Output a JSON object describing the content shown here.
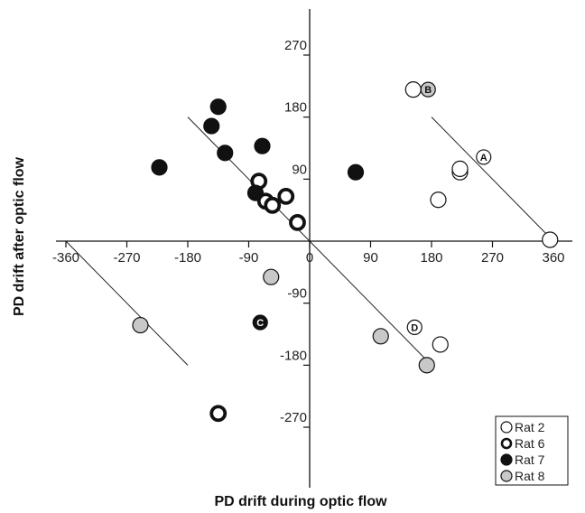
{
  "chart_data": {
    "type": "scatter",
    "xlabel": "PD drift during optic flow",
    "ylabel": "PD drift after optic flow",
    "xlim": [
      -360,
      360
    ],
    "ylim": [
      -360,
      360
    ],
    "x_ticks": [
      -360,
      -270,
      -180,
      -90,
      0,
      90,
      180,
      270,
      360
    ],
    "y_ticks": [
      -270,
      -180,
      -90,
      90,
      180,
      270
    ],
    "x_tick_labels": [
      "-360",
      "-270",
      "-180",
      "-90",
      "0",
      "90",
      "180",
      "270",
      "360"
    ],
    "y_tick_labels": [
      "-270",
      "-180",
      "-90",
      "90",
      "180",
      "270"
    ],
    "grid": false,
    "legend_position": "bottom-right",
    "reference_lines": [
      {
        "x1": -360,
        "y1": 0,
        "x2": -180,
        "y2": -180
      },
      {
        "x1": -180,
        "y1": 180,
        "x2": 0,
        "y2": 0
      },
      {
        "x1": 0,
        "y1": 0,
        "x2": 180,
        "y2": -180
      },
      {
        "x1": 180,
        "y1": 180,
        "x2": 360,
        "y2": 0
      }
    ],
    "series": [
      {
        "name": "Rat 2",
        "marker": "open-thin",
        "color": "#ffffff",
        "points": [
          {
            "x": 153,
            "y": 220
          },
          {
            "x": 190,
            "y": 60
          },
          {
            "x": 222,
            "y": 100
          },
          {
            "x": 222,
            "y": 105
          },
          {
            "x": 193,
            "y": -150
          },
          {
            "x": 355,
            "y": 2
          }
        ]
      },
      {
        "name": "Rat 6",
        "marker": "open-thick",
        "color": "#ffffff",
        "points": [
          {
            "x": -75,
            "y": 87
          },
          {
            "x": -65,
            "y": 58
          },
          {
            "x": -55,
            "y": 52
          },
          {
            "x": -35,
            "y": 65
          },
          {
            "x": -18,
            "y": 27
          },
          {
            "x": -135,
            "y": -250
          }
        ]
      },
      {
        "name": "Rat 7",
        "marker": "filled-black",
        "color": "#111111",
        "points": [
          {
            "x": -135,
            "y": 195
          },
          {
            "x": -145,
            "y": 167
          },
          {
            "x": -125,
            "y": 128
          },
          {
            "x": -70,
            "y": 138
          },
          {
            "x": -222,
            "y": 107
          },
          {
            "x": 68,
            "y": 100
          },
          {
            "x": -80,
            "y": 70
          }
        ]
      },
      {
        "name": "Rat 8",
        "marker": "filled-gray",
        "color": "#c8c8c8",
        "points": [
          {
            "x": -57,
            "y": -52
          },
          {
            "x": -250,
            "y": -122
          },
          {
            "x": 105,
            "y": -138
          },
          {
            "x": 173,
            "y": -180
          }
        ]
      }
    ],
    "annotations": [
      {
        "text": "A",
        "x": 257,
        "y": 122,
        "style": "open"
      },
      {
        "text": "B",
        "x": 175,
        "y": 220,
        "style": "gray"
      },
      {
        "text": "C",
        "x": -73,
        "y": -118,
        "style": "black"
      },
      {
        "text": "D",
        "x": 155,
        "y": -125,
        "style": "open"
      }
    ]
  },
  "legend": {
    "items": [
      {
        "label": "Rat 2",
        "marker": "open-thin"
      },
      {
        "label": "Rat 6",
        "marker": "open-thick"
      },
      {
        "label": "Rat 7",
        "marker": "filled-black"
      },
      {
        "label": "Rat 8",
        "marker": "filled-gray"
      }
    ]
  }
}
